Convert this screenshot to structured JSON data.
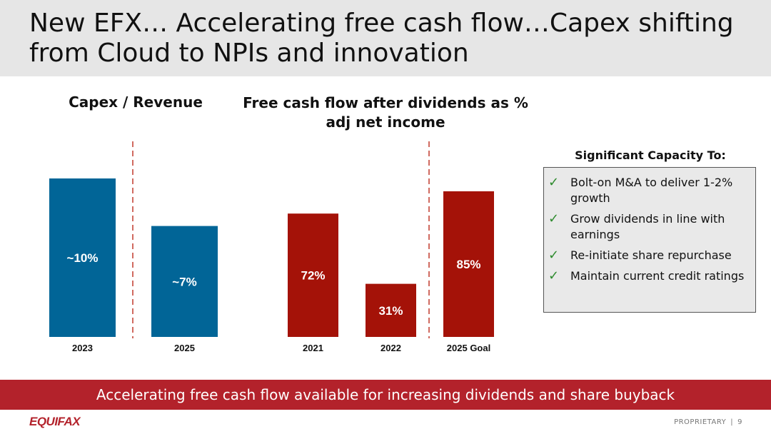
{
  "slide": {
    "title": "New EFX… Accelerating free cash flow…Capex shifting from Cloud to NPIs and innovation",
    "banner": "Accelerating free cash flow available for increasing dividends and share buyback",
    "logo": "EQUIFAX",
    "footer_label": "PROPRIETARY",
    "footer_sep": "|",
    "page_number": "9"
  },
  "capacity": {
    "title": "Significant Capacity To:",
    "items": [
      "Bolt-on M&A to deliver 1-2% growth",
      "Grow dividends in line with earnings",
      "Re-initiate share repurchase",
      "Maintain current credit ratings"
    ]
  },
  "colors": {
    "blue": "#016597",
    "red": "#a41208",
    "banner": "#b3222b",
    "check": "#2e8b2e"
  },
  "chart_data": [
    {
      "type": "bar",
      "title": "Capex / Revenue",
      "categories": [
        "2023",
        "2025"
      ],
      "values": [
        10,
        7
      ],
      "data_labels": [
        "~10%",
        "~7%"
      ],
      "color": "#016597"
    },
    {
      "type": "bar",
      "title": "Free cash flow after dividends as % adj net income",
      "categories": [
        "2021",
        "2022",
        "2025 Goal"
      ],
      "values": [
        72,
        31,
        85
      ],
      "data_labels": [
        "72%",
        "31%",
        "85%"
      ],
      "color": "#a41208"
    }
  ]
}
